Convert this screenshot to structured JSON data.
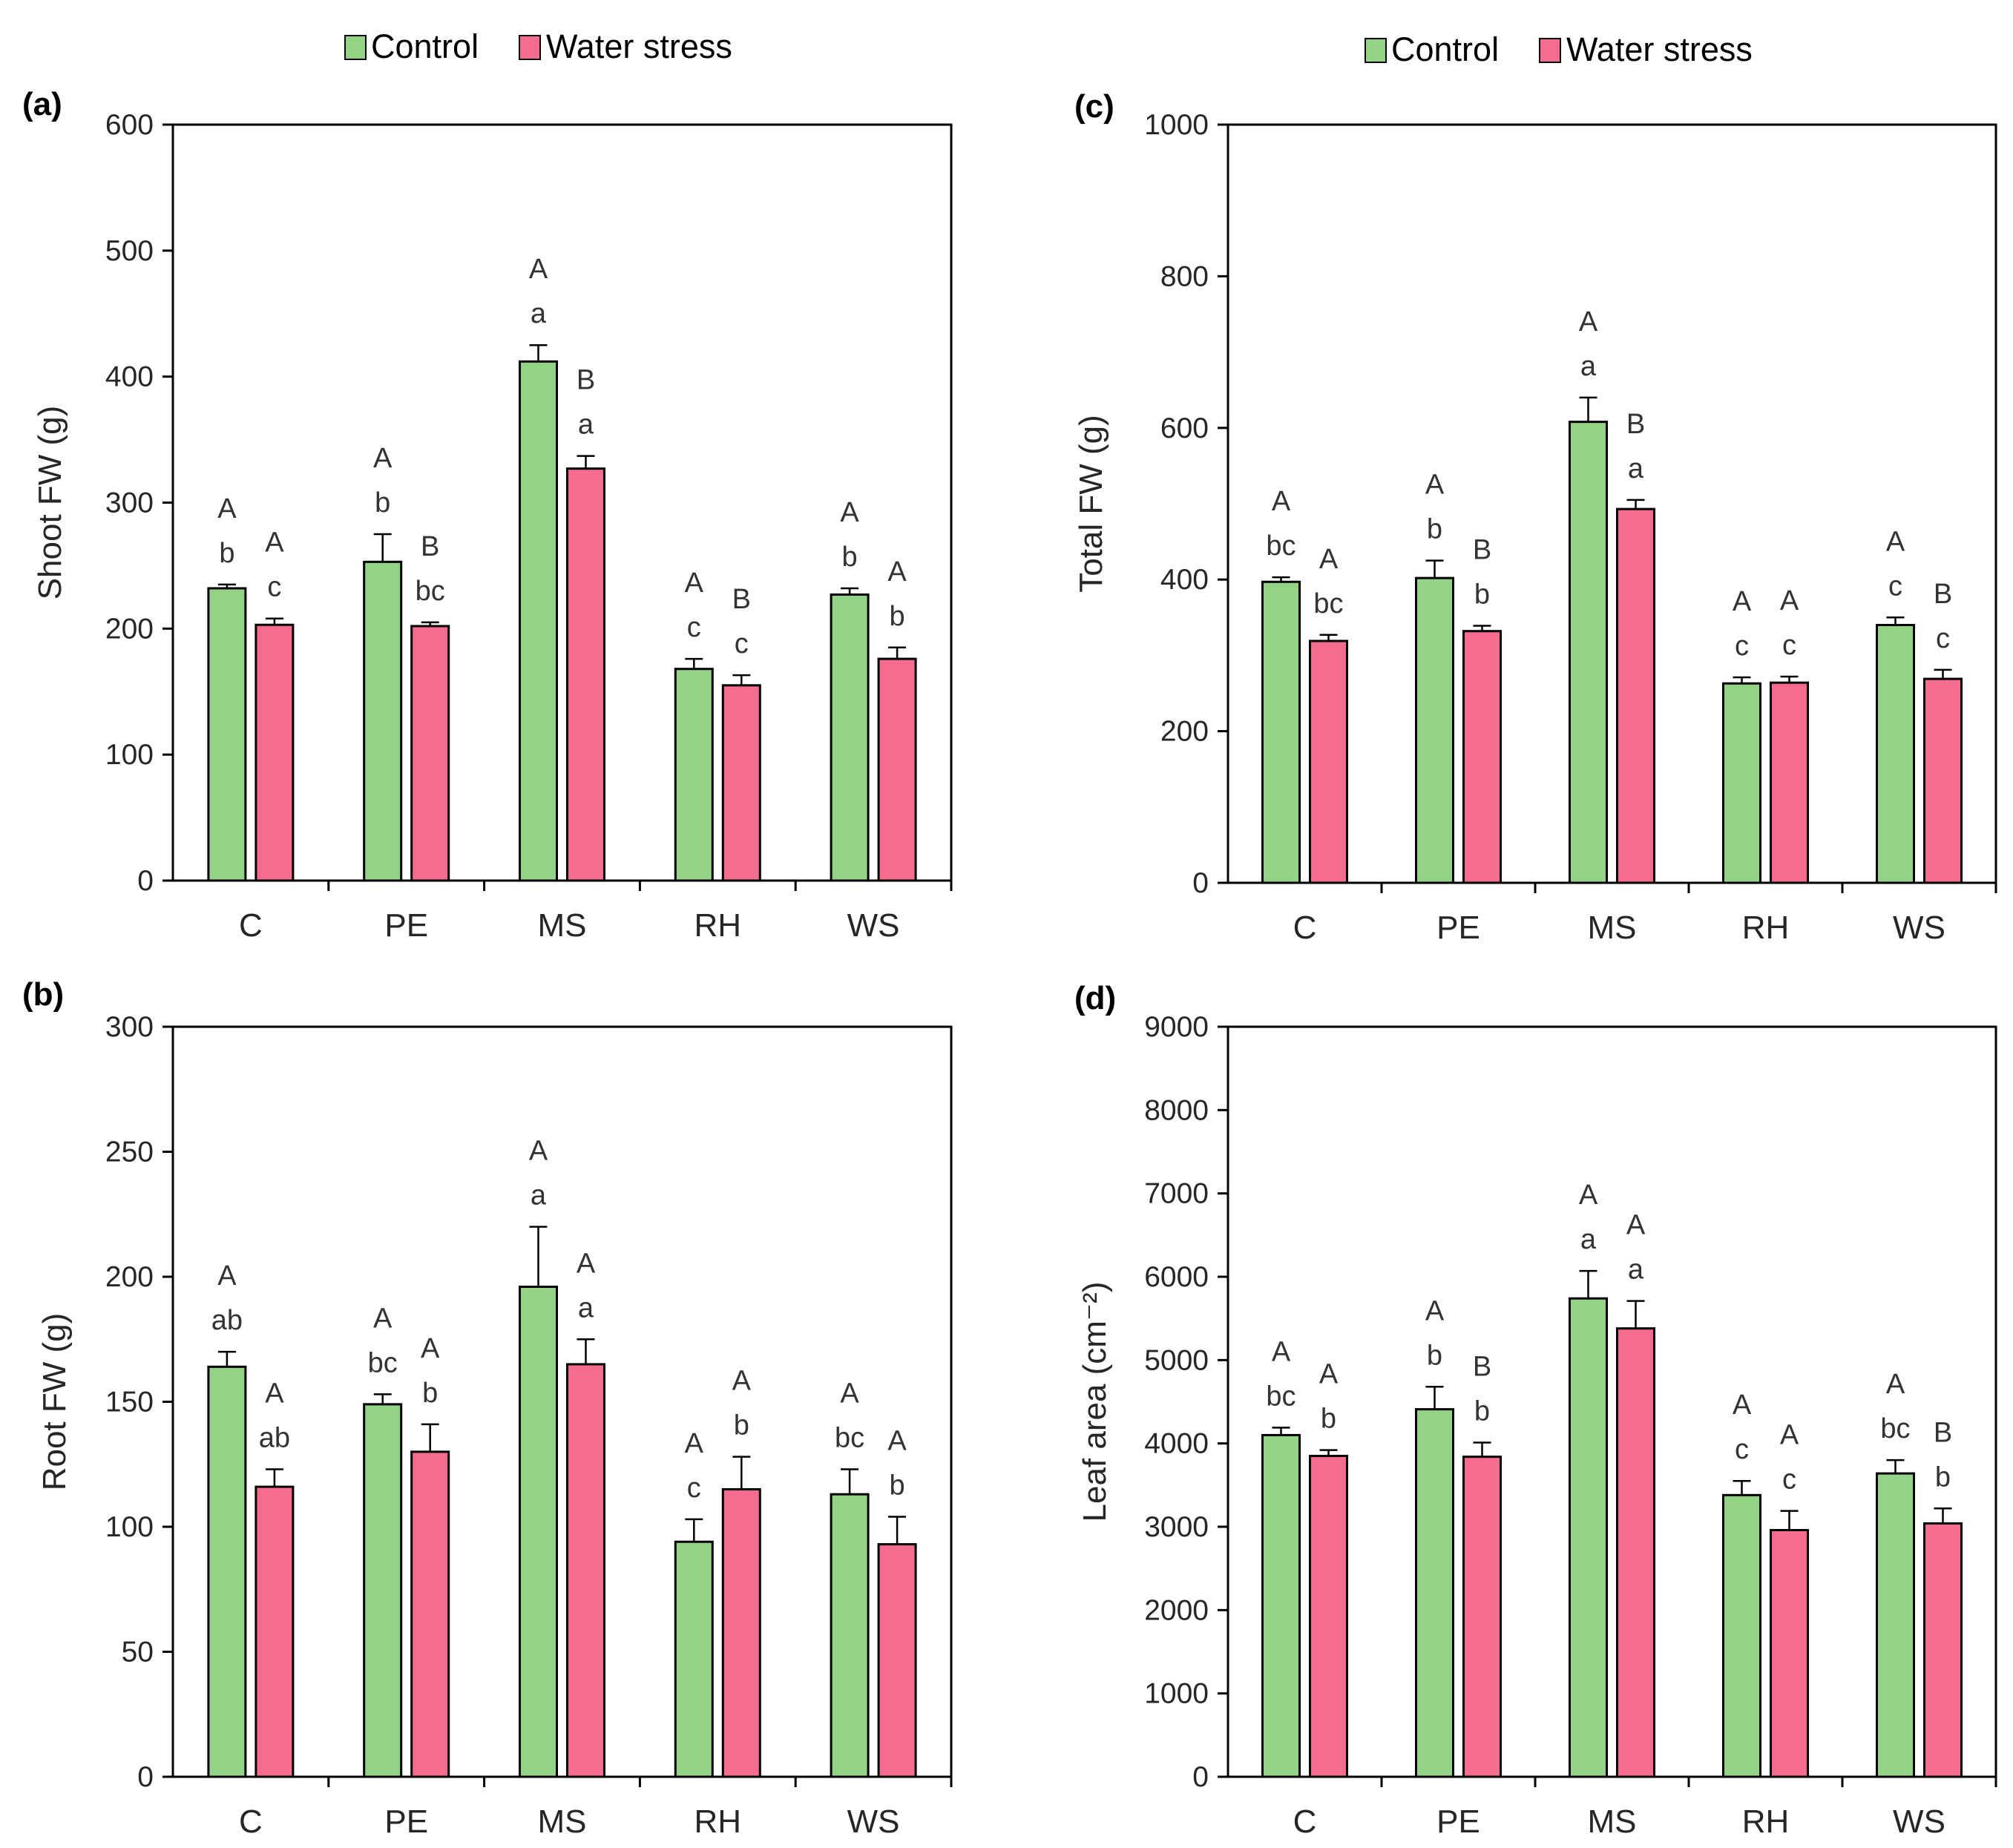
{
  "legend": {
    "items": [
      {
        "label": "Control",
        "color": "#93d386"
      },
      {
        "label": "Water stress",
        "color": "#f56c8e"
      }
    ]
  },
  "chart_data": [
    {
      "panel": "(a)",
      "type": "bar",
      "ylabel": "Shoot FW (g)",
      "ylim": [
        0,
        600
      ],
      "yticks": [
        0,
        100,
        200,
        300,
        400,
        500,
        600
      ],
      "categories": [
        "C",
        "PE",
        "MS",
        "RH",
        "WS"
      ],
      "series": [
        {
          "name": "Control",
          "values": [
            232,
            253,
            412,
            168,
            227
          ],
          "errors": [
            3,
            22,
            13,
            8,
            5
          ],
          "upper_letters": [
            "A",
            "A",
            "A",
            "A",
            "A"
          ],
          "lower_letters": [
            "b",
            "b",
            "a",
            "c",
            "b"
          ]
        },
        {
          "name": "Water stress",
          "values": [
            203,
            202,
            327,
            155,
            176
          ],
          "errors": [
            5,
            3,
            10,
            8,
            9
          ],
          "upper_letters": [
            "A",
            "B",
            "B",
            "B",
            "A"
          ],
          "lower_letters": [
            "c",
            "bc",
            "a",
            "c",
            "b"
          ]
        }
      ]
    },
    {
      "panel": "(b)",
      "type": "bar",
      "ylabel": "Root FW (g)",
      "ylim": [
        0,
        300
      ],
      "yticks": [
        0,
        50,
        100,
        150,
        200,
        250,
        300
      ],
      "categories": [
        "C",
        "PE",
        "MS",
        "RH",
        "WS"
      ],
      "series": [
        {
          "name": "Control",
          "values": [
            164,
            149,
            196,
            94,
            113
          ],
          "errors": [
            6,
            4,
            24,
            9,
            10
          ],
          "upper_letters": [
            "A",
            "A",
            "A",
            "A",
            "A"
          ],
          "lower_letters": [
            "ab",
            "bc",
            "a",
            "c",
            "bc"
          ]
        },
        {
          "name": "Water stress",
          "values": [
            116,
            130,
            165,
            115,
            93
          ],
          "errors": [
            7,
            11,
            10,
            13,
            11
          ],
          "upper_letters": [
            "A",
            "A",
            "A",
            "A",
            "A"
          ],
          "lower_letters": [
            "ab",
            "b",
            "a",
            "b",
            "b"
          ]
        }
      ]
    },
    {
      "panel": "(c)",
      "type": "bar",
      "ylabel": "Total FW (g)",
      "ylim": [
        0,
        1000
      ],
      "yticks": [
        0,
        200,
        400,
        600,
        800,
        1000
      ],
      "categories": [
        "C",
        "PE",
        "MS",
        "RH",
        "WS"
      ],
      "series": [
        {
          "name": "Control",
          "values": [
            397,
            402,
            608,
            263,
            340
          ],
          "errors": [
            6,
            23,
            32,
            8,
            10
          ],
          "upper_letters": [
            "A",
            "A",
            "A",
            "A",
            "A"
          ],
          "lower_letters": [
            "bc",
            "b",
            "a",
            "c",
            "c"
          ]
        },
        {
          "name": "Water stress",
          "values": [
            319,
            332,
            493,
            264,
            269
          ],
          "errors": [
            8,
            7,
            12,
            8,
            12
          ],
          "upper_letters": [
            "A",
            "B",
            "B",
            "A",
            "B"
          ],
          "lower_letters": [
            "bc",
            "b",
            "a",
            "c",
            "c"
          ]
        }
      ]
    },
    {
      "panel": "(d)",
      "type": "bar",
      "ylabel": "Leaf area (cm⁻²)",
      "ylim": [
        0,
        9000
      ],
      "yticks": [
        0,
        1000,
        2000,
        3000,
        4000,
        5000,
        6000,
        7000,
        8000,
        9000
      ],
      "categories": [
        "C",
        "PE",
        "MS",
        "RH",
        "WS"
      ],
      "series": [
        {
          "name": "Control",
          "values": [
            4100,
            4410,
            5740,
            3380,
            3640
          ],
          "errors": [
            90,
            270,
            330,
            170,
            160
          ],
          "upper_letters": [
            "A",
            "A",
            "A",
            "A",
            "A"
          ],
          "lower_letters": [
            "bc",
            "b",
            "a",
            "c",
            "bc"
          ]
        },
        {
          "name": "Water stress",
          "values": [
            3850,
            3840,
            5380,
            2960,
            3040
          ],
          "errors": [
            70,
            170,
            330,
            230,
            180
          ],
          "upper_letters": [
            "A",
            "B",
            "A",
            "A",
            "B"
          ],
          "lower_letters": [
            "b",
            "b",
            "a",
            "c",
            "b"
          ]
        }
      ]
    }
  ]
}
